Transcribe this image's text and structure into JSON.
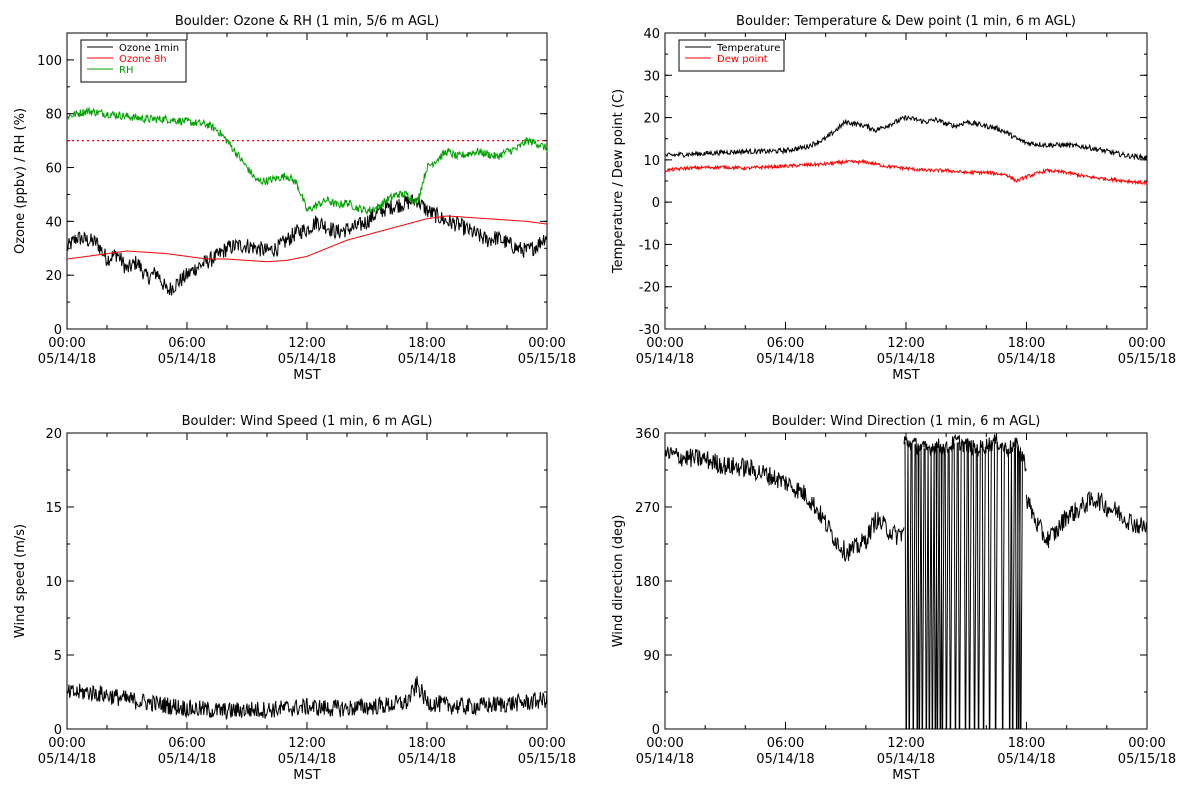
{
  "chart_data": [
    {
      "type": "line",
      "title": "Boulder: Ozone & RH (1 min, 5/6 m AGL)",
      "xlabel": "MST",
      "ylabel": "Ozone (ppbv) / RH (%)",
      "xlim": [
        0,
        24
      ],
      "ylim": [
        0,
        110
      ],
      "yticks": [
        "0",
        "20",
        "40",
        "60",
        "80",
        "100"
      ],
      "xtick_labels": [
        [
          "00:00",
          "05/14/18"
        ],
        [
          "06:00",
          "05/14/18"
        ],
        [
          "12:00",
          "05/14/18"
        ],
        [
          "18:00",
          "05/14/18"
        ],
        [
          "00:00",
          "05/15/18"
        ]
      ],
      "legend": {
        "position": "top-left",
        "entries": [
          "Ozone 1min",
          "Ozone 8h",
          "RH"
        ]
      },
      "reference_line": {
        "y": 70,
        "style": "dotted",
        "color": "#ff0000"
      },
      "series": [
        {
          "name": "Ozone 1min",
          "color": "#000000",
          "x": [
            0,
            0.5,
            1,
            1.5,
            2,
            2.5,
            3,
            3.5,
            4,
            4.5,
            5,
            5.5,
            6,
            6.5,
            7,
            7.5,
            8,
            8.5,
            9,
            9.5,
            10,
            10.5,
            11,
            11.5,
            12,
            12.5,
            13,
            13.5,
            14,
            14.5,
            15,
            15.5,
            16,
            16.5,
            17,
            17.5,
            18,
            18.5,
            19,
            19.5,
            20,
            20.5,
            21,
            21.5,
            22,
            22.5,
            23,
            23.5,
            24
          ],
          "y": [
            30,
            34,
            33,
            32,
            26,
            28,
            22,
            25,
            19,
            21,
            14,
            17,
            20,
            23,
            25,
            27,
            30,
            31,
            31,
            30,
            29,
            30,
            33,
            36,
            37,
            40,
            38,
            36,
            37,
            38,
            40,
            43,
            45,
            46,
            47,
            48,
            44,
            42,
            40,
            39,
            37,
            35,
            33,
            34,
            32,
            30,
            29,
            31,
            35
          ],
          "noise": 3
        },
        {
          "name": "Ozone 8h",
          "color": "#ff0000",
          "x": [
            0,
            1,
            2,
            3,
            4,
            5,
            6,
            7,
            8,
            9,
            10,
            11,
            12,
            13,
            14,
            15,
            16,
            17,
            18,
            19,
            20,
            21,
            22,
            23,
            24
          ],
          "y": [
            26,
            27,
            28,
            29,
            28.5,
            28,
            27,
            26,
            26,
            25.5,
            25,
            25.5,
            27,
            30,
            33,
            35,
            37,
            39,
            41,
            42,
            41.5,
            41,
            40.5,
            40,
            39
          ],
          "noise": 0
        },
        {
          "name": "RH",
          "color": "#00a000",
          "x": [
            0,
            0.5,
            1,
            2,
            3,
            4,
            5,
            6,
            7,
            7.5,
            8,
            8.5,
            9,
            9.5,
            10,
            10.5,
            11,
            11.5,
            12,
            12.5,
            13,
            13.5,
            14,
            14.5,
            15,
            15.5,
            16,
            16.5,
            17,
            17.5,
            18,
            18.5,
            19,
            19.5,
            20,
            20.5,
            21,
            21.5,
            22,
            22.5,
            23,
            23.5,
            24
          ],
          "y": [
            79,
            80,
            81,
            80,
            79,
            78,
            78,
            77,
            76,
            74,
            70,
            65,
            60,
            55,
            55,
            56,
            57,
            54,
            44,
            46,
            48,
            46,
            47,
            45,
            44,
            45,
            48,
            50,
            50,
            47,
            60,
            63,
            66,
            64,
            65,
            66,
            65,
            64,
            66,
            67,
            70,
            69,
            67
          ],
          "noise": 1.5
        }
      ]
    },
    {
      "type": "line",
      "title": "Boulder: Temperature & Dew point (1 min, 6 m AGL)",
      "xlabel": "MST",
      "ylabel": "Temperature / Dew point (C)",
      "xlim": [
        0,
        24
      ],
      "ylim": [
        -30,
        40
      ],
      "yticks": [
        "-30",
        "-20",
        "-10",
        "0",
        "10",
        "20",
        "30",
        "40"
      ],
      "xtick_labels": [
        [
          "00:00",
          "05/14/18"
        ],
        [
          "06:00",
          "05/14/18"
        ],
        [
          "12:00",
          "05/14/18"
        ],
        [
          "18:00",
          "05/14/18"
        ],
        [
          "00:00",
          "05/15/18"
        ]
      ],
      "legend": {
        "position": "top-left",
        "entries": [
          "Temperature",
          "Dew point"
        ]
      },
      "series": [
        {
          "name": "Temperature",
          "color": "#000000",
          "x": [
            0,
            1,
            2,
            3,
            4,
            5,
            6,
            7,
            8,
            8.5,
            9,
            9.5,
            10,
            10.5,
            11,
            11.5,
            12,
            12.5,
            13,
            13.5,
            14,
            14.5,
            15,
            15.5,
            16,
            16.5,
            17,
            17.5,
            18,
            19,
            20,
            21,
            22,
            23,
            24
          ],
          "y": [
            11,
            11.3,
            11.5,
            11.8,
            12,
            12,
            12.2,
            13,
            15,
            17,
            19,
            18.5,
            18,
            17,
            18,
            19,
            20,
            19.5,
            19,
            19.5,
            18.5,
            18,
            19,
            18.5,
            18,
            17.5,
            16.5,
            15,
            14,
            13.5,
            13.5,
            13,
            12,
            11,
            10.5
          ],
          "noise": 0.6
        },
        {
          "name": "Dew point",
          "color": "#ff0000",
          "x": [
            0,
            1,
            2,
            3,
            4,
            5,
            6,
            7,
            8,
            9,
            10,
            11,
            12,
            13,
            14,
            15,
            16,
            17,
            17.5,
            18,
            19,
            20,
            21,
            22,
            23,
            24
          ],
          "y": [
            7.5,
            8,
            8.2,
            8.3,
            8,
            8.3,
            8.5,
            8.8,
            9,
            9.5,
            9.5,
            8.5,
            8,
            7.5,
            7.5,
            7,
            7,
            6.5,
            5,
            6,
            7.5,
            7,
            6,
            5.5,
            5,
            4.5
          ],
          "noise": 0.4
        }
      ]
    },
    {
      "type": "line",
      "title": "Boulder: Wind Speed (1 min, 6 m AGL)",
      "xlabel": "MST",
      "ylabel": "Wind speed (m/s)",
      "xlim": [
        0,
        24
      ],
      "ylim": [
        0,
        20
      ],
      "yticks": [
        "0",
        "5",
        "10",
        "15",
        "20"
      ],
      "xtick_labels": [
        [
          "00:00",
          "05/14/18"
        ],
        [
          "06:00",
          "05/14/18"
        ],
        [
          "12:00",
          "05/14/18"
        ],
        [
          "18:00",
          "05/14/18"
        ],
        [
          "00:00",
          "05/15/18"
        ]
      ],
      "series": [
        {
          "name": "",
          "color": "#000000",
          "x": [
            0,
            1,
            2,
            3,
            4,
            5,
            6,
            7,
            8,
            9,
            10,
            11,
            12,
            13,
            14,
            15,
            16,
            17,
            17.5,
            18,
            19,
            20,
            21,
            22,
            23,
            24
          ],
          "y": [
            2.4,
            2.5,
            2.3,
            2,
            1.8,
            1.6,
            1.4,
            1.3,
            1.2,
            1.3,
            1.3,
            1.4,
            1.5,
            1.4,
            1.4,
            1.5,
            1.6,
            1.8,
            3,
            1.8,
            1.6,
            1.5,
            1.6,
            1.7,
            1.8,
            2
          ],
          "noise": 0.6
        }
      ]
    },
    {
      "type": "line",
      "title": "Boulder: Wind Direction (1 min, 6 m AGL)",
      "xlabel": "MST",
      "ylabel": "Wind direction (deg)",
      "xlim": [
        0,
        24
      ],
      "ylim": [
        0,
        360
      ],
      "yticks": [
        "0",
        "90",
        "180",
        "270",
        "360"
      ],
      "xtick_labels": [
        [
          "00:00",
          "05/14/18"
        ],
        [
          "06:00",
          "05/14/18"
        ],
        [
          "12:00",
          "05/14/18"
        ],
        [
          "18:00",
          "05/14/18"
        ],
        [
          "00:00",
          "05/15/18"
        ]
      ],
      "series": [
        {
          "name": "",
          "color": "#000000",
          "x": [
            0,
            1,
            2,
            3,
            4,
            5,
            6,
            7,
            7.5,
            8,
            8.5,
            9,
            9.5,
            10,
            10.5,
            11,
            11.5,
            11.9
          ],
          "y": [
            335,
            330,
            328,
            320,
            318,
            310,
            300,
            285,
            270,
            250,
            230,
            215,
            220,
            230,
            255,
            245,
            235,
            240
          ],
          "noise": 12
        },
        {
          "name": "",
          "color": "#000000",
          "x": [
            11.9,
            12.5,
            13,
            13.5,
            14,
            14.5,
            15,
            15.5,
            16,
            16.5,
            17,
            17.5,
            18
          ],
          "y": [
            350,
            345,
            340,
            345,
            340,
            350,
            345,
            340,
            345,
            350,
            340,
            345,
            320
          ],
          "noise": 10,
          "drops": [
            11.95,
            12.1,
            12.3,
            12.5,
            12.6,
            12.75,
            12.95,
            13.1,
            13.25,
            13.4,
            13.5,
            13.65,
            13.75,
            13.95,
            14.15,
            14.4,
            14.6,
            14.9,
            15.1,
            15.35,
            15.55,
            15.8,
            16.1,
            16.4,
            16.75,
            17.1,
            17.25,
            17.45,
            17.55,
            17.65
          ]
        },
        {
          "name": "",
          "color": "#000000",
          "x": [
            18,
            18.5,
            19,
            19.5,
            20,
            20.5,
            21,
            21.5,
            22,
            22.5,
            23,
            23.5,
            24
          ],
          "y": [
            280,
            250,
            230,
            240,
            260,
            265,
            275,
            280,
            270,
            265,
            255,
            248,
            245
          ],
          "noise": 12
        }
      ]
    }
  ]
}
